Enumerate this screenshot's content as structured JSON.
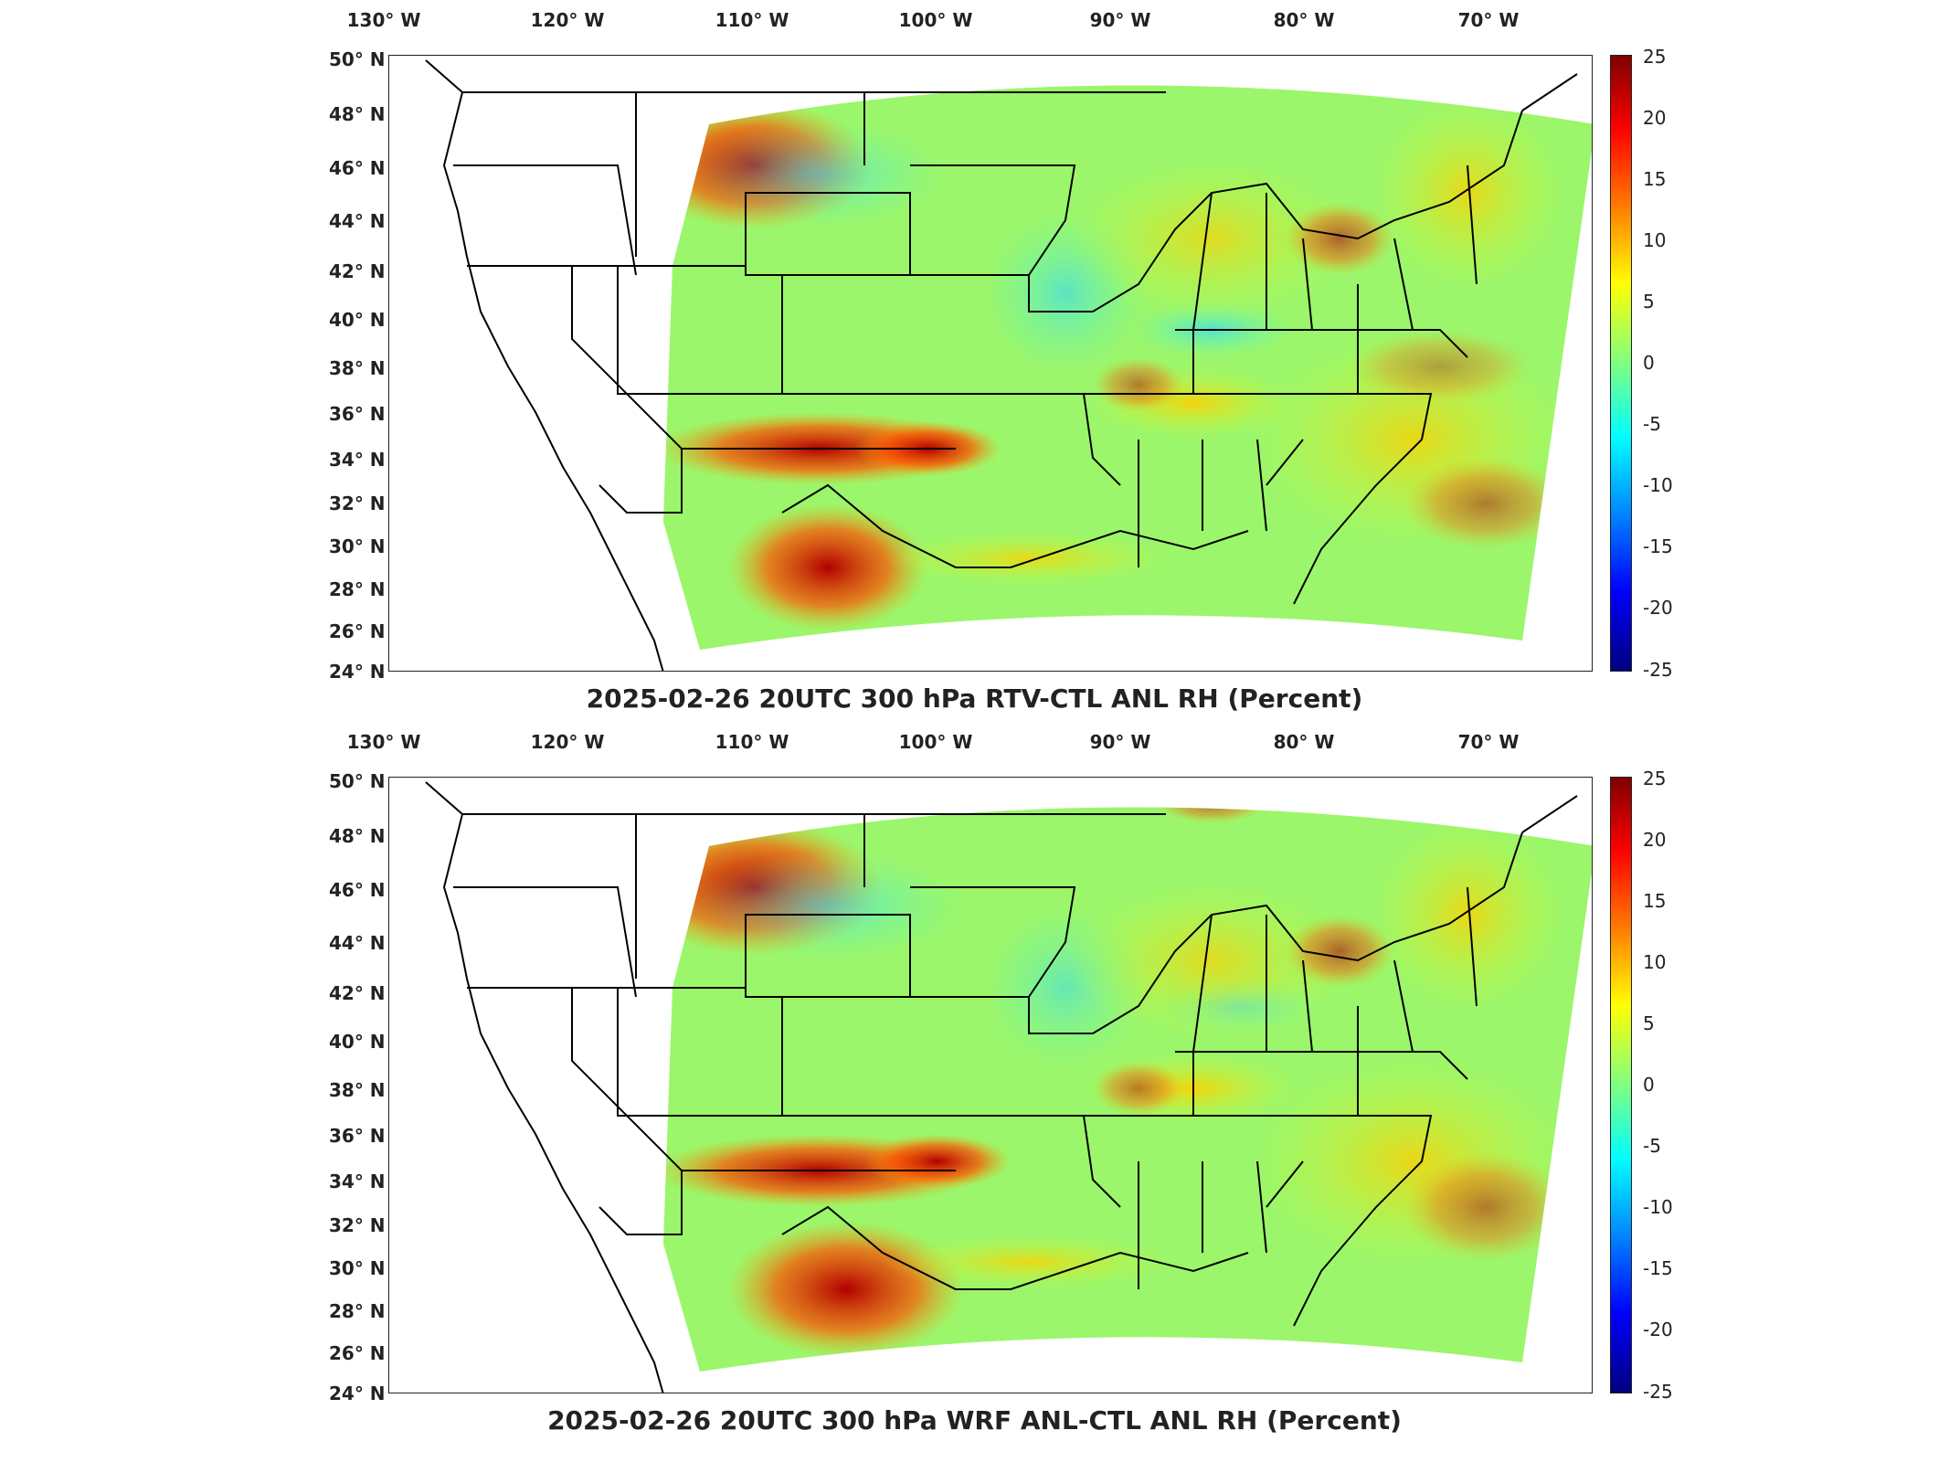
{
  "colors": {
    "high": "#800000",
    "mid": "#80ff80",
    "low": "#000080",
    "outline": "#000000"
  },
  "lon_labels": [
    "130° W",
    "120° W",
    "110° W",
    "100° W",
    "90° W",
    "80° W",
    "70° W"
  ],
  "lat_labels": [
    "50° N",
    "48° N",
    "46° N",
    "44° N",
    "42° N",
    "40° N",
    "38° N",
    "36° N",
    "34° N",
    "32° N",
    "30° N",
    "28° N",
    "26° N",
    "24° N"
  ],
  "colorbar_ticks": [
    "25",
    "20",
    "15",
    "10",
    "5",
    "0",
    "-5",
    "-10",
    "-15",
    "-20",
    "-25"
  ],
  "panels": [
    {
      "title": "2025-02-26 20UTC 300 hPa RTV-CTL ANL RH (Percent)"
    },
    {
      "title": "2025-02-26 20UTC 300 hPa WRF ANL-CTL ANL RH (Percent)"
    }
  ]
}
